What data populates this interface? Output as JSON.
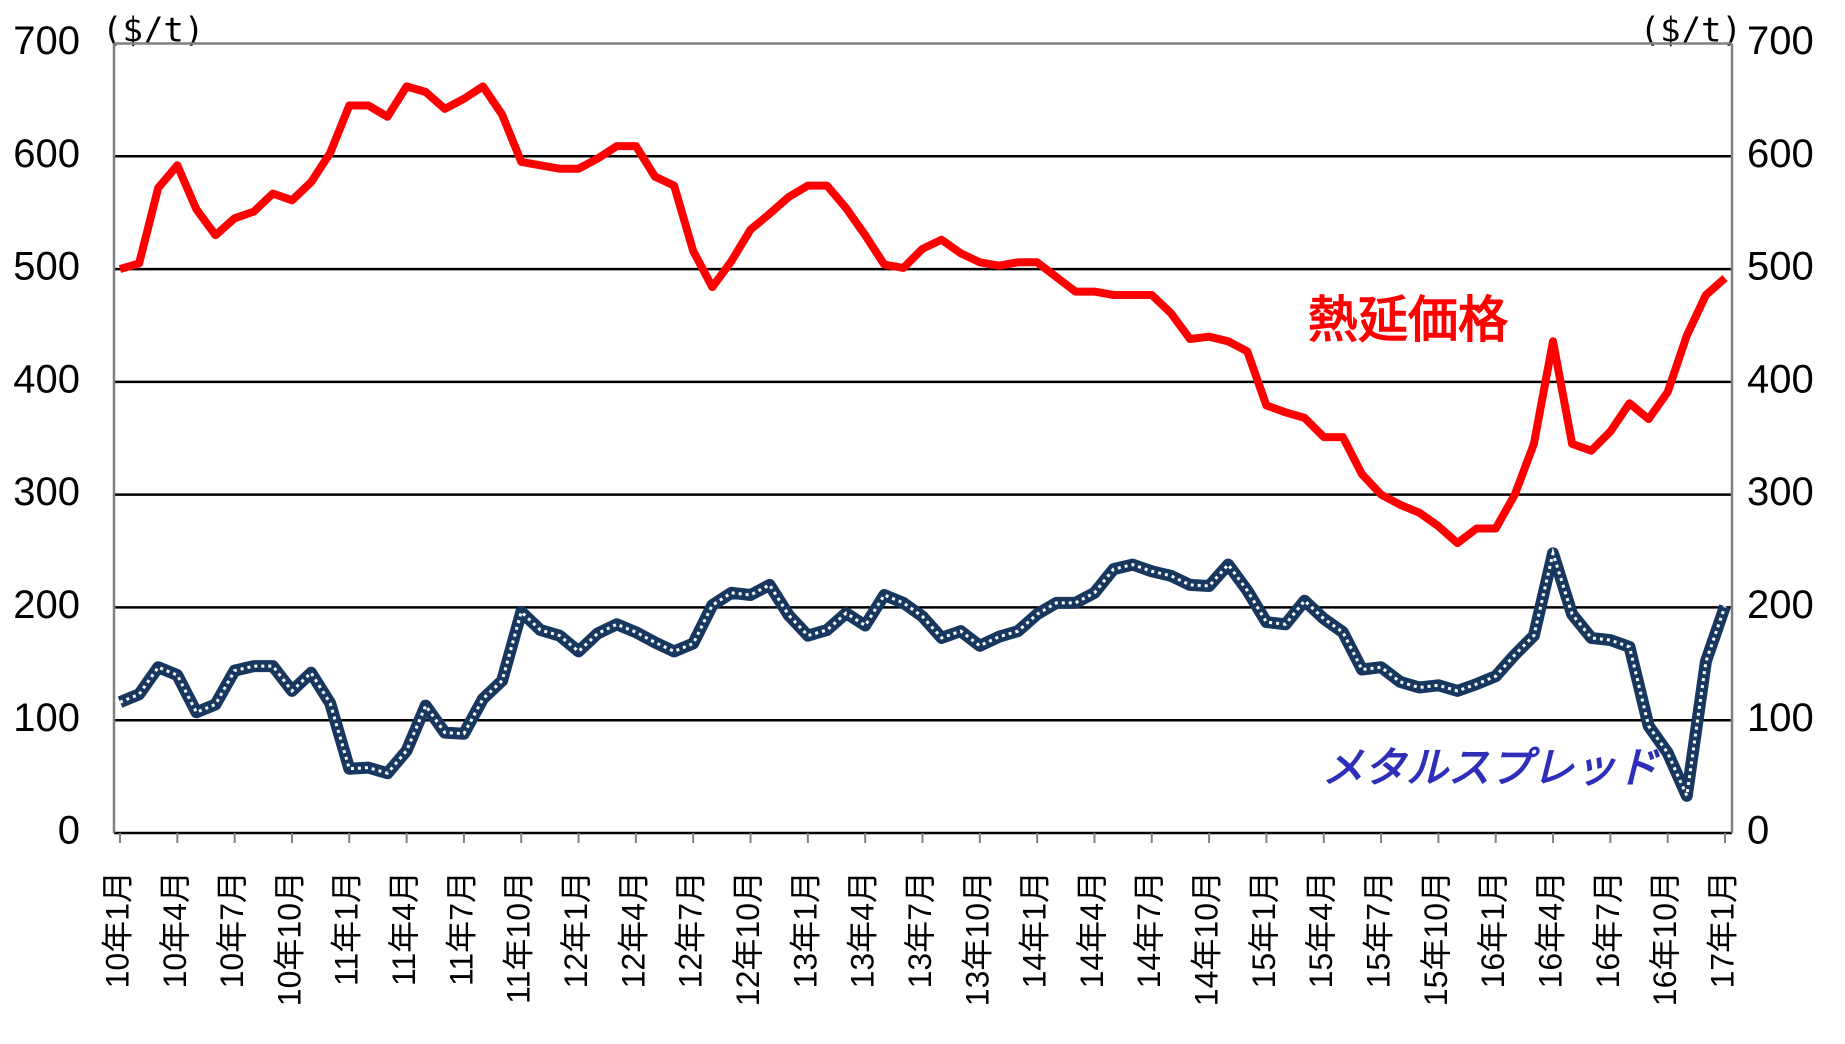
{
  "chart_data": {
    "type": "line",
    "y_label": "($/t)",
    "y2_label": "($/t)",
    "categories": [
      "10年1月",
      null,
      null,
      "10年4月",
      null,
      null,
      "10年7月",
      null,
      null,
      "10年10月",
      null,
      null,
      "11年1月",
      null,
      null,
      "11年4月",
      null,
      null,
      "11年7月",
      null,
      null,
      "11年10月",
      null,
      null,
      "12年1月",
      null,
      null,
      "12年4月",
      null,
      null,
      "12年7月",
      null,
      null,
      "12年10月",
      null,
      null,
      "13年1月",
      null,
      null,
      "13年4月",
      null,
      null,
      "13年7月",
      null,
      null,
      "13年10月",
      null,
      null,
      "14年1月",
      null,
      null,
      "14年4月",
      null,
      null,
      "14年7月",
      null,
      null,
      "14年10月",
      null,
      null,
      "15年1月",
      null,
      null,
      "15年4月",
      null,
      null,
      "15年7月",
      null,
      null,
      "15年10月",
      null,
      null,
      "16年1月",
      null,
      null,
      "16年4月",
      null,
      null,
      "16年7月",
      null,
      null,
      "16年10月",
      null,
      null,
      "17年1月"
    ],
    "series": [
      {
        "name": "熱延価格",
        "color": "#ff0000",
        "values": [
          500,
          505,
          572,
          592,
          553,
          530,
          545,
          551,
          567,
          561,
          577,
          603,
          645,
          645,
          635,
          662,
          657,
          642,
          651,
          662,
          637,
          595,
          592,
          589,
          589,
          598,
          609,
          609,
          582,
          574,
          516,
          484,
          507,
          535,
          549,
          564,
          574,
          574,
          554,
          530,
          504,
          501,
          518,
          526,
          514,
          506,
          503,
          506,
          506,
          493,
          480,
          480,
          477,
          477,
          477,
          461,
          438,
          440,
          436,
          427,
          379,
          373,
          368,
          351,
          351,
          318,
          300,
          291,
          284,
          272,
          257,
          270,
          270,
          300,
          345,
          436,
          345,
          339,
          356,
          381,
          367,
          391,
          441,
          477,
          492
        ]
      },
      {
        "name": "メタルスプレッド",
        "color": "#17375e",
        "values": [
          116,
          123,
          147,
          140,
          107,
          114,
          144,
          148,
          148,
          126,
          142,
          115,
          57,
          58,
          53,
          73,
          113,
          89,
          88,
          119,
          135,
          196,
          180,
          175,
          161,
          177,
          185,
          178,
          169,
          161,
          168,
          202,
          213,
          211,
          220,
          193,
          175,
          180,
          195,
          184,
          211,
          204,
          192,
          173,
          179,
          166,
          174,
          179,
          194,
          204,
          204,
          213,
          234,
          238,
          232,
          228,
          220,
          219,
          238,
          215,
          187,
          185,
          206,
          190,
          178,
          145,
          147,
          134,
          129,
          131,
          126,
          132,
          139,
          158,
          175,
          248,
          194,
          173,
          171,
          165,
          95,
          71,
          33,
          152,
          201
        ]
      }
    ],
    "ylim": [
      0,
      700
    ],
    "yticks": [
      0,
      100,
      200,
      300,
      400,
      500,
      600,
      700
    ],
    "y2lim": [
      0,
      700
    ],
    "y2ticks": [
      0,
      100,
      200,
      300,
      400,
      500,
      600,
      700
    ],
    "grid": true
  }
}
